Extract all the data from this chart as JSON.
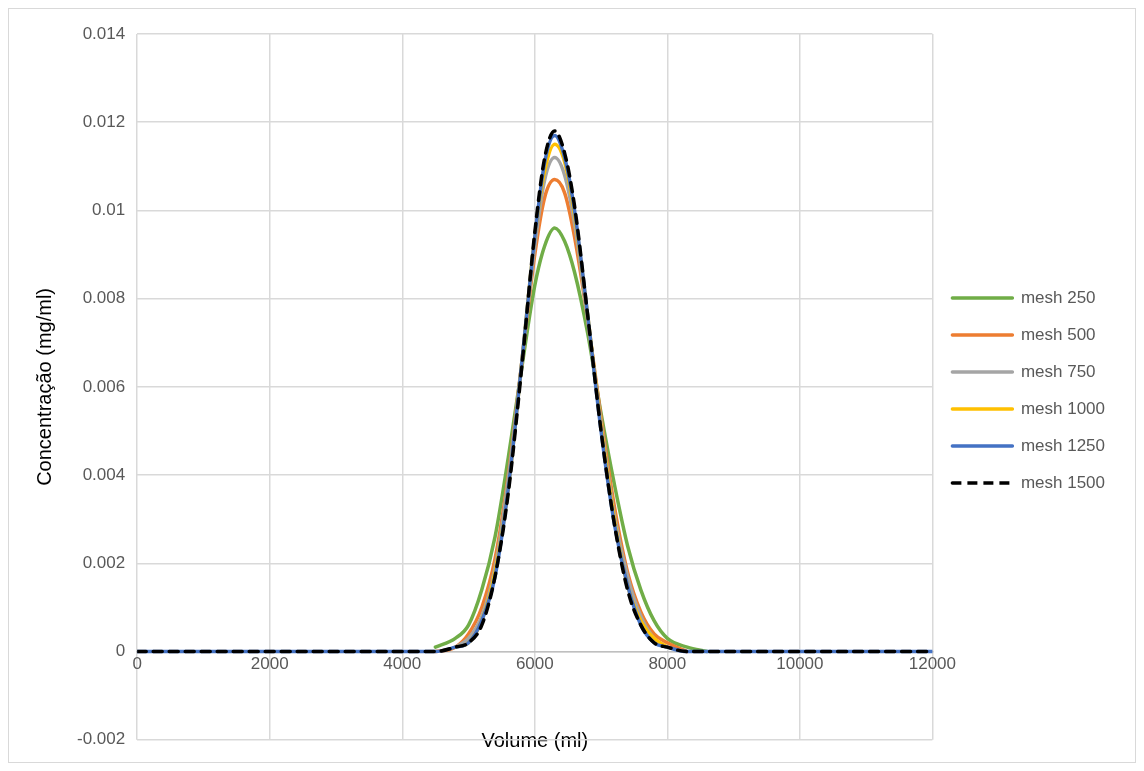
{
  "chart_data": {
    "type": "line",
    "xlabel": "Volume (ml)",
    "ylabel": "Concentração (mg/ml)",
    "x": [
      0,
      4000,
      4500,
      4800,
      5000,
      5200,
      5400,
      5600,
      5800,
      6000,
      6150,
      6300,
      6450,
      6600,
      6800,
      7000,
      7200,
      7400,
      7600,
      7800,
      8000,
      8300,
      8600,
      9000,
      10000,
      12000
    ],
    "series": [
      {
        "name": "mesh 250",
        "color": "#70ad47",
        "values": [
          null,
          null,
          0.0001,
          0.0003,
          0.0006,
          0.0014,
          0.0026,
          0.0044,
          0.0064,
          0.0083,
          0.0092,
          0.0096,
          0.0093,
          0.0086,
          0.0072,
          0.0054,
          0.0038,
          0.0024,
          0.0014,
          0.0007,
          0.0003,
          0.0001,
          0,
          null,
          null,
          null
        ]
      },
      {
        "name": "mesh 500",
        "color": "#ed7d31",
        "values": [
          null,
          null,
          0,
          0.0001,
          0.0004,
          0.001,
          0.0021,
          0.004,
          0.0065,
          0.009,
          0.0103,
          0.0107,
          0.0104,
          0.0094,
          0.0075,
          0.0053,
          0.0033,
          0.0018,
          0.0009,
          0.0004,
          0.0002,
          0,
          null,
          null,
          null,
          null
        ]
      },
      {
        "name": "mesh 750",
        "color": "#a5a5a5",
        "values": [
          null,
          null,
          null,
          0.0001,
          0.0003,
          0.0008,
          0.0019,
          0.0039,
          0.0065,
          0.0092,
          0.0107,
          0.0112,
          0.0108,
          0.0097,
          0.0075,
          0.0052,
          0.0031,
          0.0017,
          0.0008,
          0.0003,
          0.0001,
          null,
          null,
          null,
          null,
          null
        ]
      },
      {
        "name": "mesh 1000",
        "color": "#ffc000",
        "values": [
          null,
          null,
          null,
          0.0001,
          0.0002,
          0.0007,
          0.0018,
          0.0037,
          0.0065,
          0.0094,
          0.0109,
          0.0115,
          0.0111,
          0.0099,
          0.0076,
          0.0051,
          0.003,
          0.0015,
          0.0007,
          0.0003,
          0.0001,
          null,
          null,
          null,
          null,
          null
        ]
      },
      {
        "name": "mesh 1250",
        "color": "#4472c4",
        "values": [
          0,
          0,
          0,
          0.0001,
          0.0002,
          0.0007,
          0.0017,
          0.0037,
          0.0065,
          0.0094,
          0.0111,
          0.0117,
          0.0112,
          0.01,
          0.0076,
          0.005,
          0.0029,
          0.0015,
          0.0006,
          0.0002,
          0.0001,
          0,
          0,
          0,
          0,
          0
        ]
      },
      {
        "name": "mesh 1500",
        "color": "#000000",
        "line_style": "dashed",
        "values": [
          0,
          0,
          0,
          0.0001,
          0.0002,
          0.0006,
          0.0017,
          0.0036,
          0.0064,
          0.0095,
          0.0112,
          0.0118,
          0.0113,
          0.0101,
          0.0076,
          0.005,
          0.0029,
          0.0014,
          0.0006,
          0.0002,
          0.0001,
          0,
          0,
          0,
          0,
          0
        ]
      }
    ],
    "xlim": [
      0,
      12000
    ],
    "xticks": [
      0,
      2000,
      4000,
      6000,
      8000,
      10000,
      12000
    ],
    "ylim": [
      -0.002,
      0.014
    ],
    "yticks": [
      -0.002,
      0,
      0.002,
      0.004,
      0.006,
      0.008,
      0.01,
      0.012,
      0.014
    ],
    "grid": true,
    "legend": "right",
    "marker": "none",
    "line_style": "solid"
  }
}
